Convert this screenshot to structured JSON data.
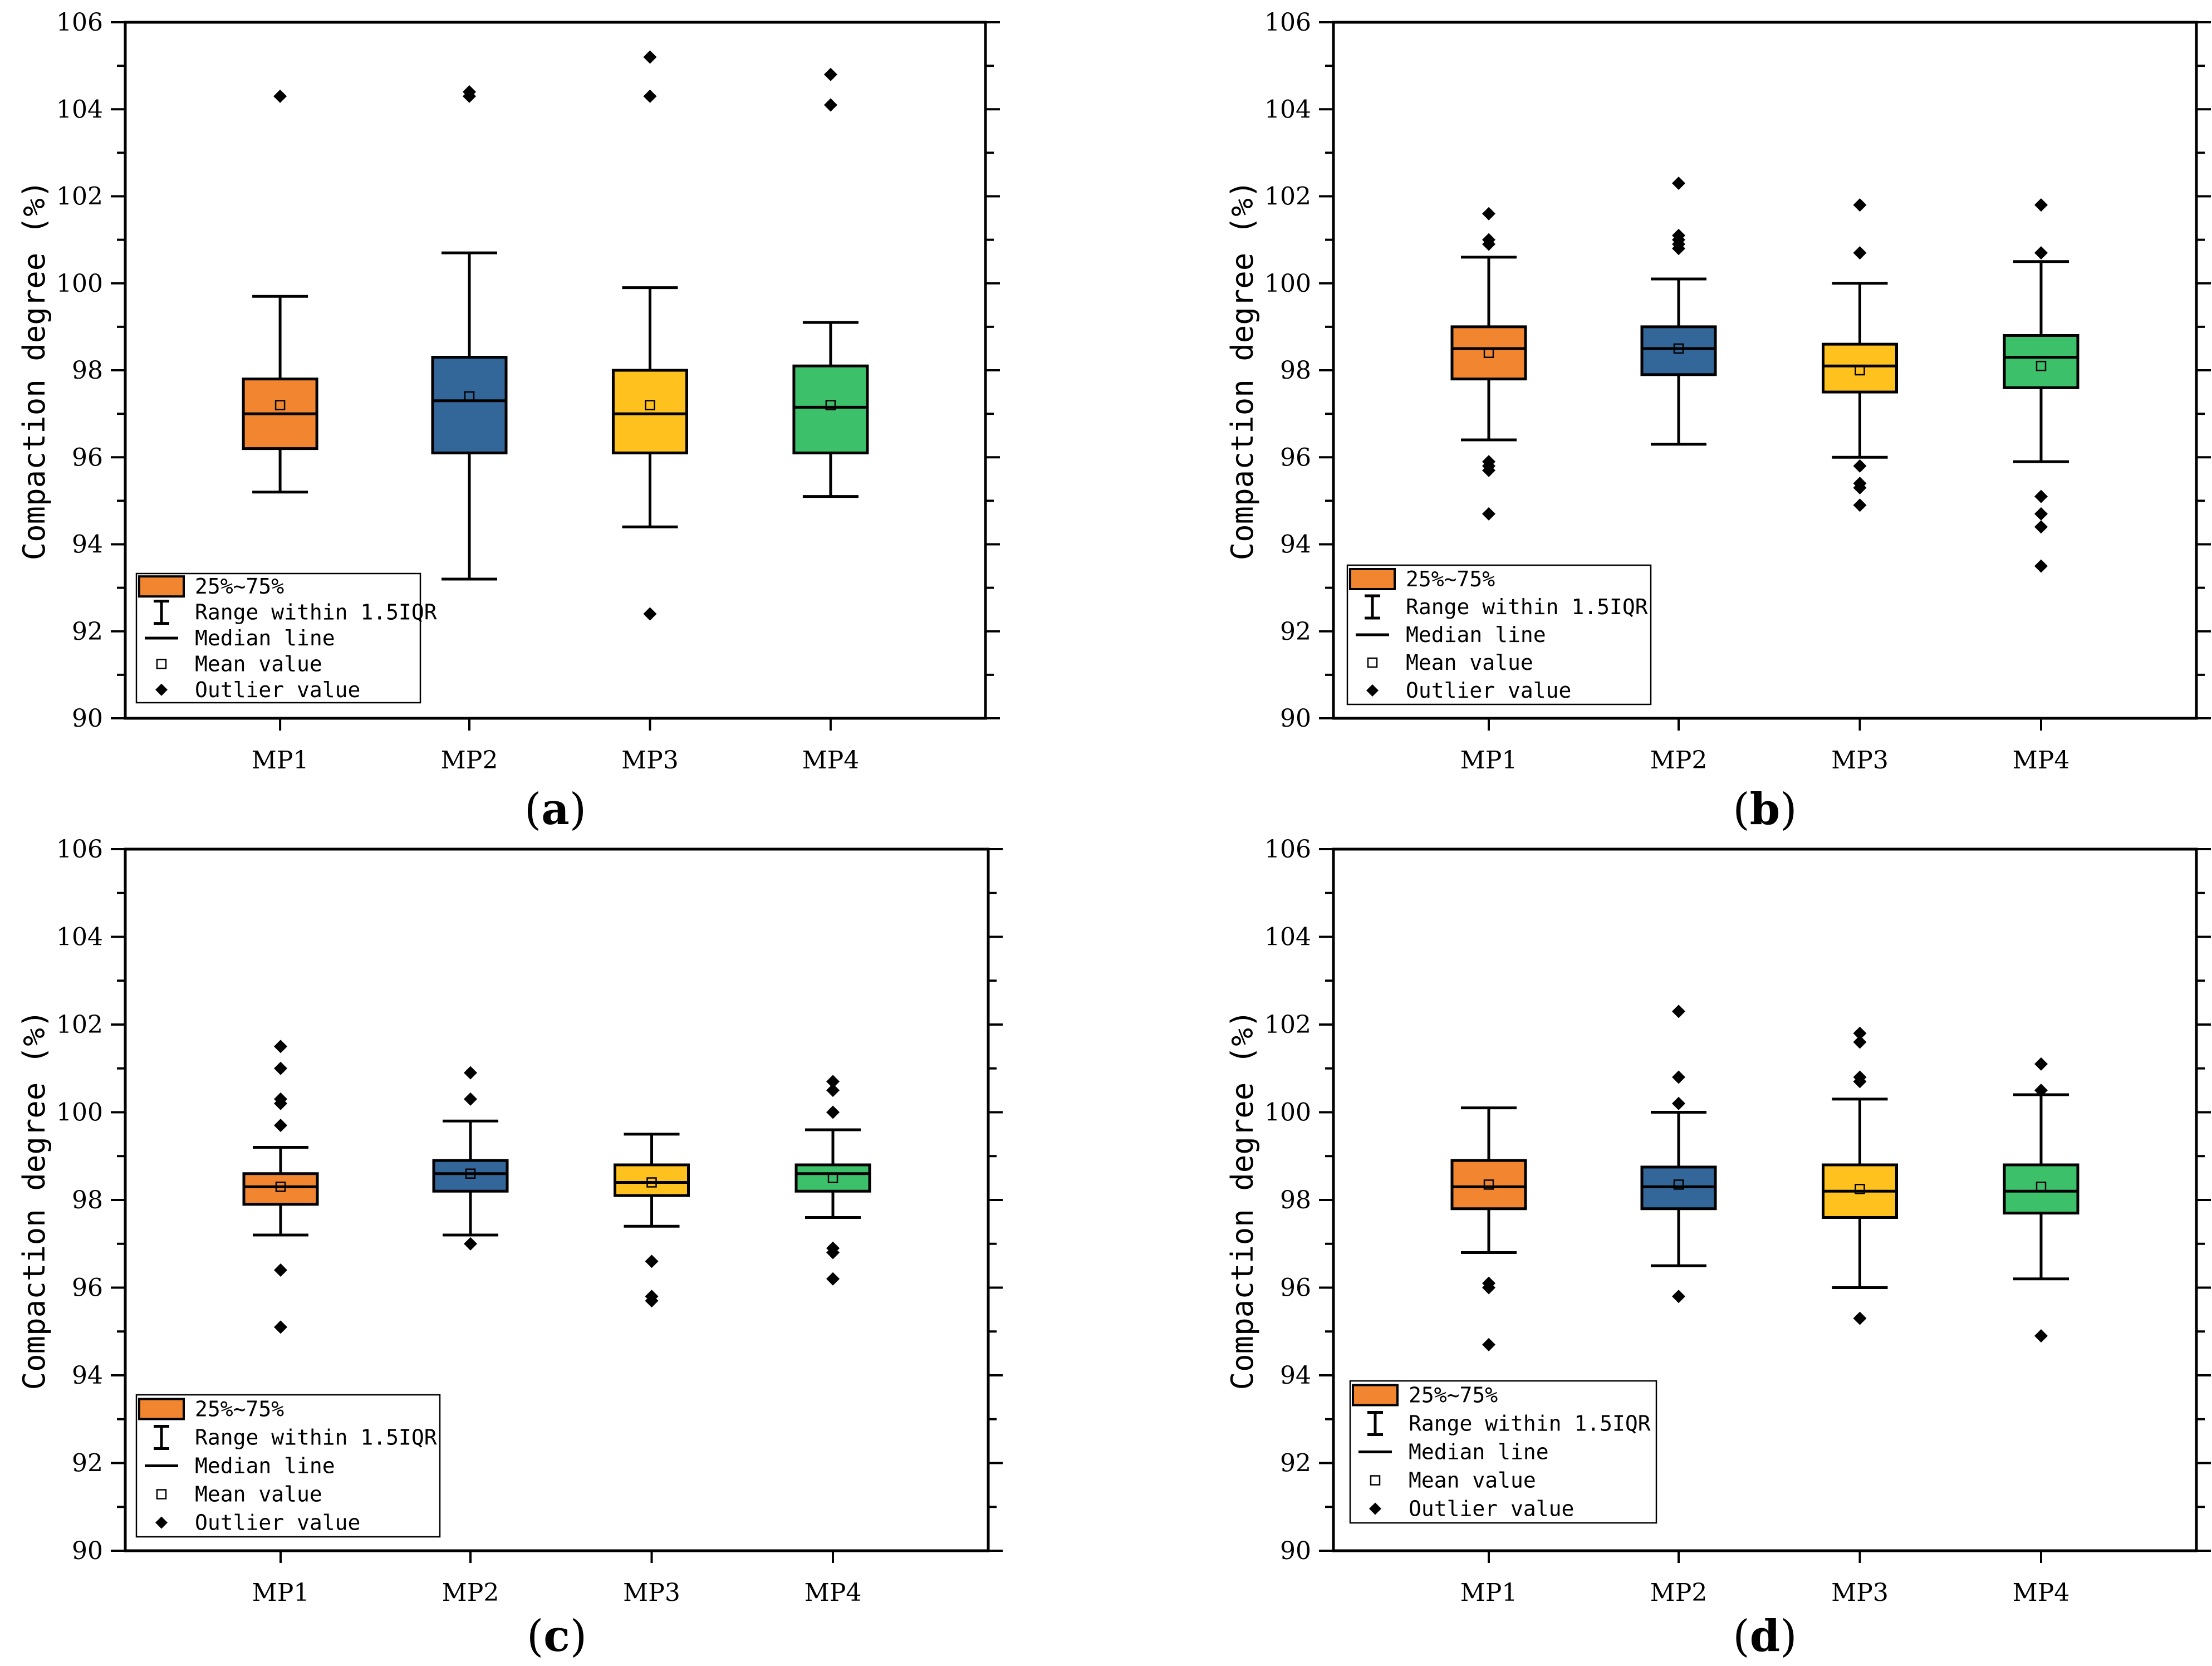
{
  "colors": {
    "MP1": "#F28530",
    "MP2": "#336699",
    "MP3": "#FFC11E",
    "MP4": "#3CC06A",
    "axis": "#000000"
  },
  "legend_labels": {
    "box": "25%~75%",
    "range": "Range within 1.5IQR",
    "median": "Median line",
    "mean": "Mean value",
    "outlier": "Outlier value"
  },
  "chart_data": [
    {
      "type": "box",
      "panel_label": "a",
      "ylabel": "Compaction degree (%)",
      "ylim": [
        90,
        106
      ],
      "yticks": [
        "90",
        "92",
        "94",
        "96",
        "98",
        "100",
        "102",
        "104",
        "106"
      ],
      "categories": [
        "MP1",
        "MP2",
        "MP3",
        "MP4"
      ],
      "boxes": [
        {
          "name": "MP1",
          "whisker_low": 95.2,
          "q1": 96.2,
          "median": 97.0,
          "q3": 97.8,
          "whisker_high": 99.7,
          "mean": 97.2,
          "outliers": [
            104.3
          ]
        },
        {
          "name": "MP2",
          "whisker_low": 93.2,
          "q1": 96.1,
          "median": 97.3,
          "q3": 98.3,
          "whisker_high": 100.7,
          "mean": 97.4,
          "outliers": [
            104.3,
            104.4
          ]
        },
        {
          "name": "MP3",
          "whisker_low": 94.4,
          "q1": 96.1,
          "median": 97.0,
          "q3": 98.0,
          "whisker_high": 99.9,
          "mean": 97.2,
          "outliers": [
            92.4,
            104.3,
            105.2
          ]
        },
        {
          "name": "MP4",
          "whisker_low": 95.1,
          "q1": 96.1,
          "median": 97.15,
          "q3": 98.1,
          "whisker_high": 99.1,
          "mean": 97.2,
          "outliers": [
            104.1,
            104.8
          ]
        }
      ]
    },
    {
      "type": "box",
      "panel_label": "b",
      "ylabel": "Compaction degree (%)",
      "ylim": [
        90,
        106
      ],
      "yticks": [
        "90",
        "92",
        "94",
        "96",
        "98",
        "100",
        "102",
        "104",
        "106"
      ],
      "categories": [
        "MP1",
        "MP2",
        "MP3",
        "MP4"
      ],
      "boxes": [
        {
          "name": "MP1",
          "whisker_low": 96.4,
          "q1": 97.8,
          "median": 98.5,
          "q3": 99.0,
          "whisker_high": 100.6,
          "mean": 98.4,
          "outliers": [
            94.7,
            95.7,
            95.8,
            95.9,
            100.9,
            101.0,
            101.6
          ]
        },
        {
          "name": "MP2",
          "whisker_low": 96.3,
          "q1": 97.9,
          "median": 98.5,
          "q3": 99.0,
          "whisker_high": 100.1,
          "mean": 98.5,
          "outliers": [
            100.8,
            100.9,
            101.0,
            101.1,
            102.3
          ]
        },
        {
          "name": "MP3",
          "whisker_low": 96.0,
          "q1": 97.5,
          "median": 98.1,
          "q3": 98.6,
          "whisker_high": 100.0,
          "mean": 98.0,
          "outliers": [
            94.9,
            95.3,
            95.4,
            95.8,
            100.7,
            101.8
          ]
        },
        {
          "name": "MP4",
          "whisker_low": 95.9,
          "q1": 97.6,
          "median": 98.3,
          "q3": 98.8,
          "whisker_high": 100.5,
          "mean": 98.1,
          "outliers": [
            93.5,
            94.4,
            94.7,
            95.1,
            100.7,
            101.8
          ]
        }
      ]
    },
    {
      "type": "box",
      "panel_label": "c",
      "ylabel": "Compaction degree (%)",
      "ylim": [
        90,
        106
      ],
      "yticks": [
        "90",
        "92",
        "94",
        "96",
        "98",
        "100",
        "102",
        "104",
        "106"
      ],
      "categories": [
        "MP1",
        "MP2",
        "MP3",
        "MP4"
      ],
      "boxes": [
        {
          "name": "MP1",
          "whisker_low": 97.2,
          "q1": 97.9,
          "median": 98.3,
          "q3": 98.6,
          "whisker_high": 99.2,
          "mean": 98.3,
          "outliers": [
            95.1,
            96.4,
            99.7,
            100.2,
            100.3,
            101.0,
            101.5
          ]
        },
        {
          "name": "MP2",
          "whisker_low": 97.2,
          "q1": 98.2,
          "median": 98.6,
          "q3": 98.9,
          "whisker_high": 99.8,
          "mean": 98.6,
          "outliers": [
            97.0,
            100.3,
            100.9
          ]
        },
        {
          "name": "MP3",
          "whisker_low": 97.4,
          "q1": 98.1,
          "median": 98.4,
          "q3": 98.8,
          "whisker_high": 99.5,
          "mean": 98.4,
          "outliers": [
            95.7,
            95.8,
            96.6
          ]
        },
        {
          "name": "MP4",
          "whisker_low": 97.6,
          "q1": 98.2,
          "median": 98.6,
          "q3": 98.8,
          "whisker_high": 99.6,
          "mean": 98.5,
          "outliers": [
            96.2,
            96.8,
            96.9,
            100.0,
            100.5,
            100.7
          ]
        }
      ]
    },
    {
      "type": "box",
      "panel_label": "d",
      "ylabel": "Compaction degree (%)",
      "ylim": [
        90,
        106
      ],
      "yticks": [
        "90",
        "92",
        "94",
        "96",
        "98",
        "100",
        "102",
        "104",
        "106"
      ],
      "categories": [
        "MP1",
        "MP2",
        "MP3",
        "MP4"
      ],
      "boxes": [
        {
          "name": "MP1",
          "whisker_low": 96.8,
          "q1": 97.8,
          "median": 98.3,
          "q3": 98.9,
          "whisker_high": 100.1,
          "mean": 98.35,
          "outliers": [
            94.7,
            96.0,
            96.1
          ]
        },
        {
          "name": "MP2",
          "whisker_low": 96.5,
          "q1": 97.8,
          "median": 98.3,
          "q3": 98.75,
          "whisker_high": 100.0,
          "mean": 98.35,
          "outliers": [
            95.8,
            100.2,
            100.8,
            102.3
          ]
        },
        {
          "name": "MP3",
          "whisker_low": 96.0,
          "q1": 97.6,
          "median": 98.2,
          "q3": 98.8,
          "whisker_high": 100.3,
          "mean": 98.25,
          "outliers": [
            95.3,
            100.7,
            100.8,
            101.6,
            101.8
          ]
        },
        {
          "name": "MP4",
          "whisker_low": 96.2,
          "q1": 97.7,
          "median": 98.2,
          "q3": 98.8,
          "whisker_high": 100.4,
          "mean": 98.3,
          "outliers": [
            94.9,
            100.5,
            101.1
          ]
        }
      ]
    }
  ]
}
